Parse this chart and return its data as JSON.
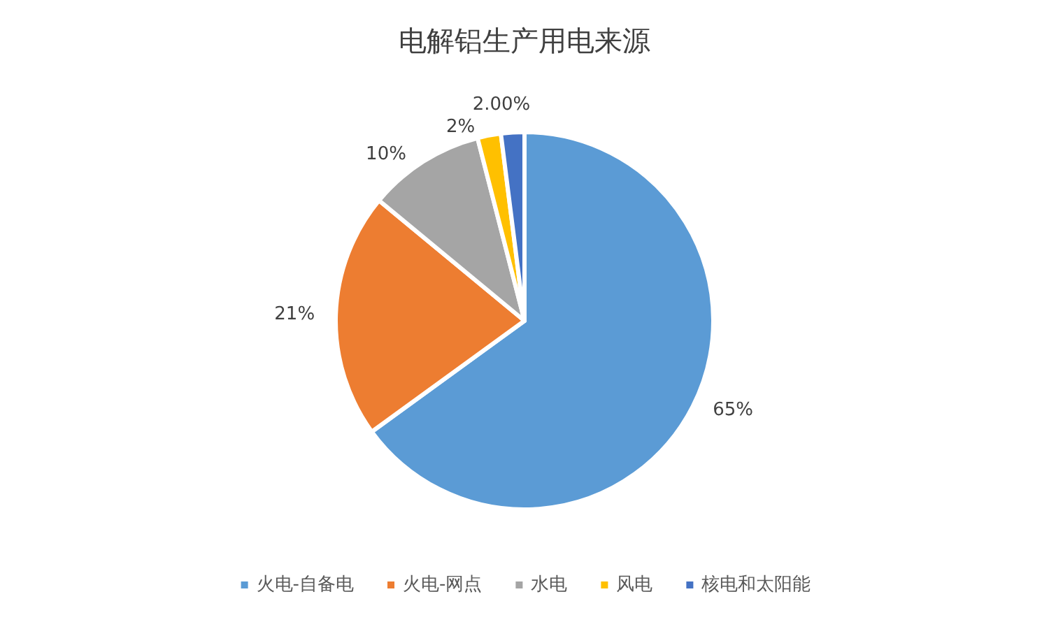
{
  "chart_data": {
    "type": "pie",
    "title": "电解铝生产用电来源",
    "categories": [
      "火电-自备电",
      "火电-网点",
      "水电",
      "风电",
      "核电和太阳能"
    ],
    "values": [
      65,
      21,
      10,
      2,
      2
    ],
    "value_labels": [
      "65%",
      "21%",
      "10%",
      "2%",
      "2.00%"
    ],
    "colors": [
      "#5b9bd5",
      "#ed7d31",
      "#a5a5a5",
      "#ffc000",
      "#4472c4"
    ],
    "legend": "bottom"
  }
}
